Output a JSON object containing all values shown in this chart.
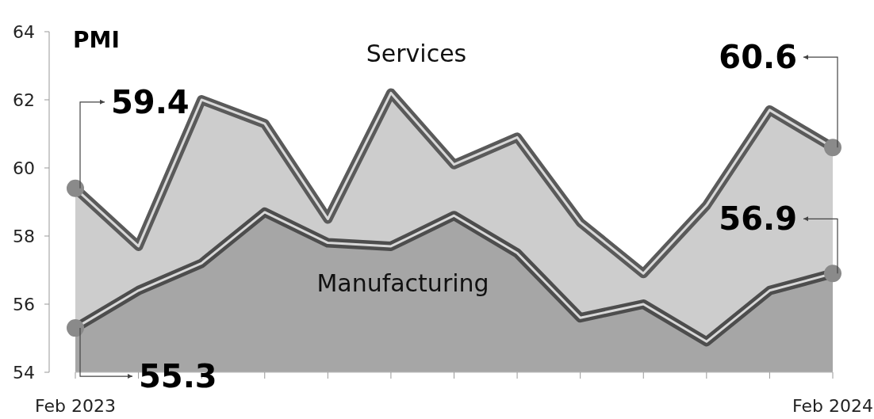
{
  "chart_data": {
    "type": "area",
    "ylabel": "PMI",
    "categories": [
      "Feb 2023",
      null,
      null,
      null,
      null,
      null,
      null,
      null,
      null,
      null,
      null,
      null,
      "Feb 2024"
    ],
    "ylim": [
      54,
      64
    ],
    "yticks": [
      54,
      56,
      58,
      60,
      62,
      64
    ],
    "series": [
      {
        "name": "Services",
        "color": "#5a5a5a",
        "values": [
          59.4,
          57.7,
          62.0,
          61.3,
          58.5,
          62.2,
          60.1,
          60.9,
          58.4,
          56.9,
          58.9,
          61.7,
          60.6
        ],
        "value_labels": [
          "59.4",
          null,
          null,
          null,
          null,
          null,
          null,
          null,
          null,
          null,
          null,
          null,
          "60.6"
        ]
      },
      {
        "name": "Manufacturing",
        "color": "#4d4d4d",
        "values": [
          55.3,
          56.4,
          57.2,
          58.7,
          57.8,
          57.7,
          58.6,
          57.5,
          55.6,
          56.0,
          54.9,
          56.4,
          56.9
        ],
        "value_labels": [
          "55.3",
          null,
          null,
          null,
          null,
          null,
          null,
          null,
          null,
          null,
          null,
          null,
          "56.9"
        ]
      }
    ]
  }
}
